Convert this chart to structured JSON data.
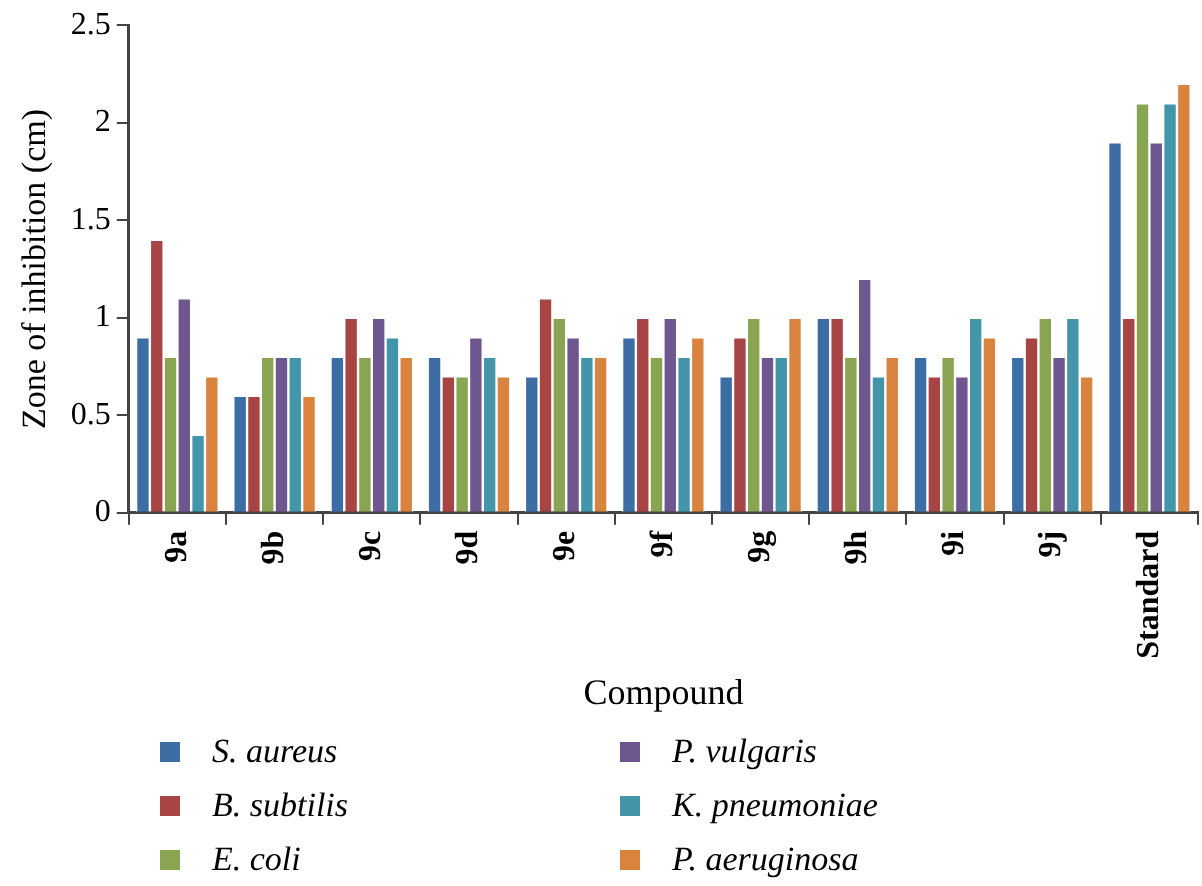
{
  "chart_data": {
    "type": "bar",
    "xlabel": "Compound",
    "ylabel": "Zone of inhibition (cm)",
    "categories": [
      "9a",
      "9b",
      "9c",
      "9d",
      "9e",
      "9f",
      "9g",
      "9h",
      "9i",
      "9j",
      "Standard"
    ],
    "series": [
      {
        "name": "S. aureus",
        "color": "#3c6da4",
        "values": [
          0.9,
          0.6,
          0.8,
          0.8,
          0.7,
          0.9,
          0.7,
          1.0,
          0.8,
          0.8,
          1.9
        ]
      },
      {
        "name": "B. subtilis",
        "color": "#a84444",
        "values": [
          1.4,
          0.6,
          1.0,
          0.7,
          1.1,
          1.0,
          0.9,
          1.0,
          0.7,
          0.9,
          1.0
        ]
      },
      {
        "name": "E. coli",
        "color": "#8aa552",
        "values": [
          0.8,
          0.8,
          0.8,
          0.7,
          1.0,
          0.8,
          1.0,
          0.8,
          0.8,
          1.0,
          2.1
        ]
      },
      {
        "name": "P. vulgaris",
        "color": "#6e568e",
        "values": [
          1.1,
          0.8,
          1.0,
          0.9,
          0.9,
          1.0,
          0.8,
          1.2,
          0.7,
          0.8,
          1.9
        ]
      },
      {
        "name": "K. pneumoniae",
        "color": "#4396aa",
        "values": [
          0.4,
          0.8,
          0.9,
          0.8,
          0.8,
          0.8,
          0.8,
          0.7,
          1.0,
          1.0,
          2.1
        ]
      },
      {
        "name": "P. aeruginosa",
        "color": "#d8833e",
        "values": [
          0.7,
          0.6,
          0.8,
          0.7,
          0.8,
          0.9,
          1.0,
          0.8,
          0.9,
          0.7,
          2.2
        ]
      }
    ],
    "ylim": [
      0,
      2.5
    ],
    "yticks": [
      0,
      0.5,
      1,
      1.5,
      2,
      2.5
    ],
    "grid": false,
    "legend": "bottom"
  }
}
